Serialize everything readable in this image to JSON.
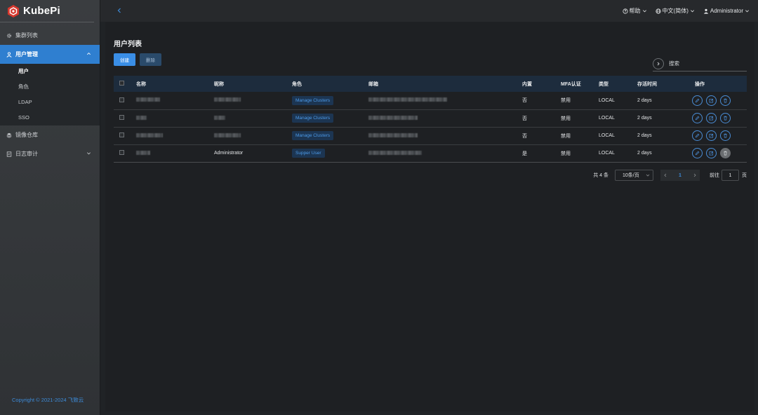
{
  "app": {
    "name": "KubePi",
    "copyright": "Copyright © 2021-2024 飞致云"
  },
  "sidebar": {
    "items": [
      {
        "label": "集群列表",
        "icon": "gear-icon"
      },
      {
        "label": "用户管理",
        "icon": "users-icon",
        "active": true,
        "expanded": true,
        "children": [
          {
            "label": "用户",
            "current": true
          },
          {
            "label": "角色"
          },
          {
            "label": "LDAP"
          },
          {
            "label": "SSO"
          }
        ]
      },
      {
        "label": "镜像仓库",
        "icon": "layers-icon"
      },
      {
        "label": "日志审计",
        "icon": "document-icon",
        "expanded": false
      }
    ]
  },
  "topbar": {
    "help": "帮助",
    "language": "中文(简体)",
    "user": "Administrator"
  },
  "page": {
    "title": "用户列表",
    "create_label": "创建",
    "delete_label": "删除",
    "search_placeholder": "搜索"
  },
  "table": {
    "columns": [
      "名称",
      "昵称",
      "角色",
      "邮箱",
      "内置",
      "MFA认证",
      "类型",
      "存活时间",
      "操作"
    ],
    "rows": [
      {
        "name_redacted": true,
        "nickname": "",
        "role": "Manage Clusters",
        "builtin": "否",
        "mfa": "禁用",
        "type": "LOCAL",
        "ttl": "2 days"
      },
      {
        "name_redacted": true,
        "nickname": "",
        "role": "Manage Clusters",
        "builtin": "否",
        "mfa": "禁用",
        "type": "LOCAL",
        "ttl": "2 days"
      },
      {
        "name_redacted": true,
        "nickname": "",
        "role": "Manage Clusters",
        "builtin": "否",
        "mfa": "禁用",
        "type": "LOCAL",
        "ttl": "2 days"
      },
      {
        "name_redacted": true,
        "nickname": "Administrator",
        "role": "Supper User",
        "builtin": "是",
        "mfa": "禁用",
        "type": "LOCAL",
        "ttl": "2 days"
      }
    ]
  },
  "pagination": {
    "total": "共 4 条",
    "page_size": "10条/页",
    "current_page": "1",
    "goto_label": "前往",
    "goto_value": "1",
    "page_suffix": "页"
  },
  "colors": {
    "accent": "#3a8ee6",
    "sidebar_active": "#2f7fd0",
    "background": "#1e2023"
  }
}
